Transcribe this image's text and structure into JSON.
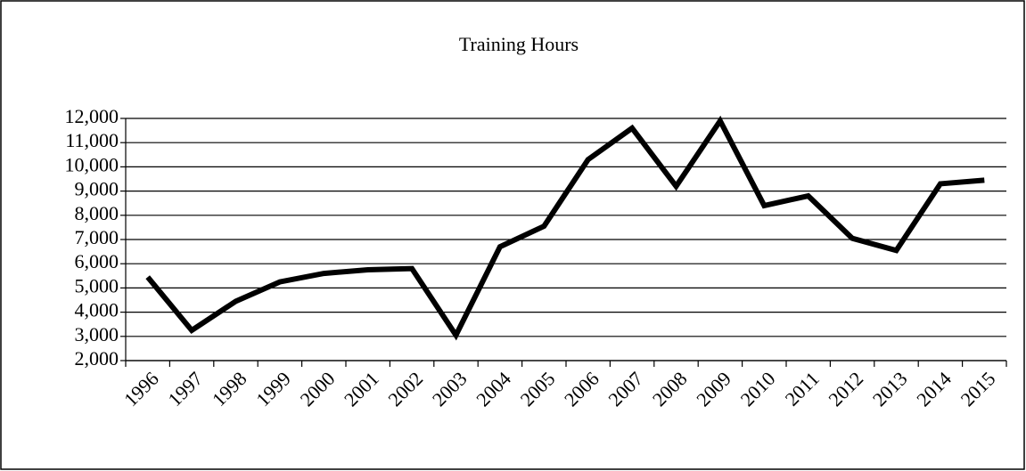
{
  "chart_data": {
    "type": "line",
    "title": "Training  Hours",
    "categories": [
      "1996",
      "1997",
      "1998",
      "1999",
      "2000",
      "2001",
      "2002",
      "2003",
      "2004",
      "2005",
      "2006",
      "2007",
      "2008",
      "2009",
      "2010",
      "2011",
      "2012",
      "2013",
      "2014",
      "2015"
    ],
    "series": [
      {
        "name": "Training Hours",
        "color": "#000000",
        "values": [
          5450,
          3250,
          4450,
          5250,
          5600,
          5750,
          5800,
          3050,
          6700,
          7550,
          10300,
          11600,
          9200,
          11900,
          8400,
          8800,
          7050,
          6550,
          9300,
          9450
        ]
      }
    ],
    "ylim": [
      2000,
      12000
    ],
    "yticks": [
      {
        "value": 2000,
        "label": "2,000"
      },
      {
        "value": 3000,
        "label": "3,000"
      },
      {
        "value": 4000,
        "label": "4,000"
      },
      {
        "value": 5000,
        "label": "5,000"
      },
      {
        "value": 6000,
        "label": "6,000"
      },
      {
        "value": 7000,
        "label": "7,000"
      },
      {
        "value": 8000,
        "label": "8,000"
      },
      {
        "value": 9000,
        "label": "9,000"
      },
      {
        "value": 10000,
        "label": "10,000"
      },
      {
        "value": 11000,
        "label": "11,000"
      },
      {
        "value": 12000,
        "label": "12,000"
      }
    ],
    "grid": true
  }
}
